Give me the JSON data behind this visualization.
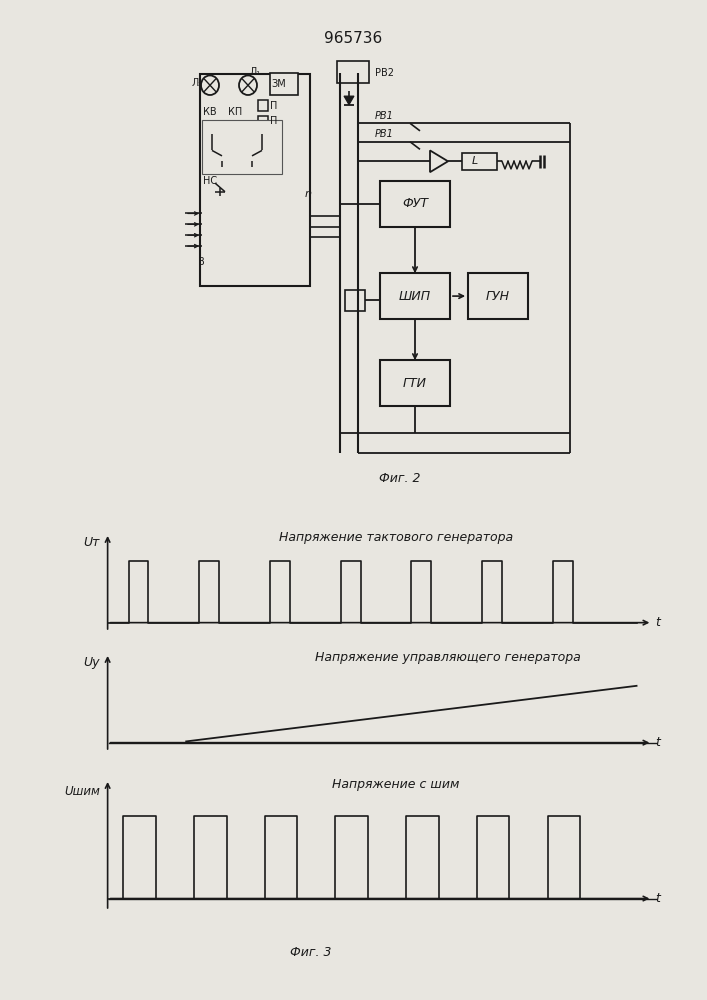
{
  "title": "965736",
  "fig2_label": "Фиг. 2",
  "fig3_label": "Фиг. 3",
  "graph1_title": "Напряжение тактового генератора",
  "graph2_title": "Напряжение управляющего генератора",
  "graph3_title": "Напряжение с шим",
  "graph1_ylabel": "Uт",
  "graph2_ylabel": "Uу",
  "graph3_ylabel": "Uшим",
  "xlabel": "t",
  "bg_color": "#e8e6e0",
  "line_color": "#1a1a1a",
  "box_face": "#e8e6e0"
}
